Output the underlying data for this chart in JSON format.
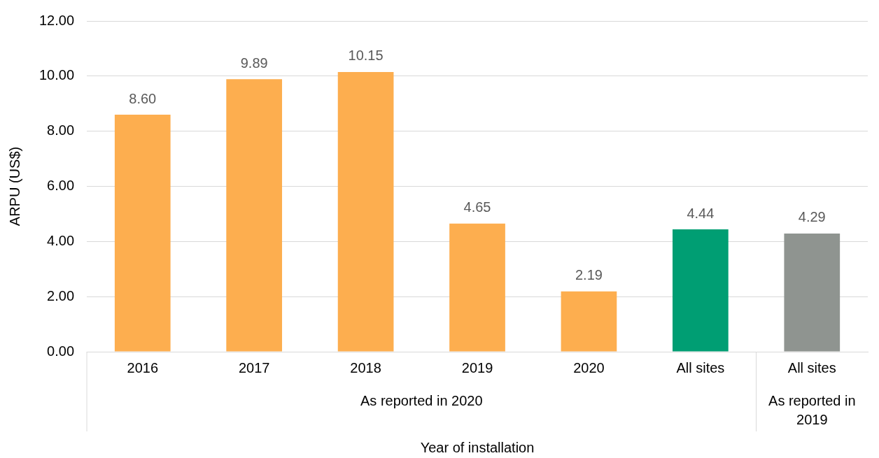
{
  "chart_data": {
    "type": "bar",
    "xlabel": "Year of installation",
    "ylabel": "ARPU (US$)",
    "categories": [
      "2016",
      "2017",
      "2018",
      "2019",
      "2020",
      "All sites",
      "All sites"
    ],
    "values": [
      8.6,
      9.89,
      10.15,
      4.65,
      2.19,
      4.44,
      4.29
    ],
    "colors": [
      "#fdae4f",
      "#fdae4f",
      "#fdae4f",
      "#fdae4f",
      "#fdae4f",
      "#009e73",
      "#8f9490"
    ],
    "ylim": [
      0,
      12
    ],
    "yticks": [
      {
        "value": 0,
        "label": "0.00"
      },
      {
        "value": 2,
        "label": "2.00"
      },
      {
        "value": 4,
        "label": "4.00"
      },
      {
        "value": 6,
        "label": "6.00"
      },
      {
        "value": 8,
        "label": "8.00"
      },
      {
        "value": 10,
        "label": "10.00"
      },
      {
        "value": 12,
        "label": "12.00"
      }
    ],
    "value_labels": [
      "8.60",
      "9.89",
      "10.15",
      "4.65",
      "2.19",
      "4.44",
      "4.29"
    ],
    "grid": "y",
    "legend": false,
    "annotations": [
      "As reported in 2020",
      "As reported in 2019"
    ]
  }
}
